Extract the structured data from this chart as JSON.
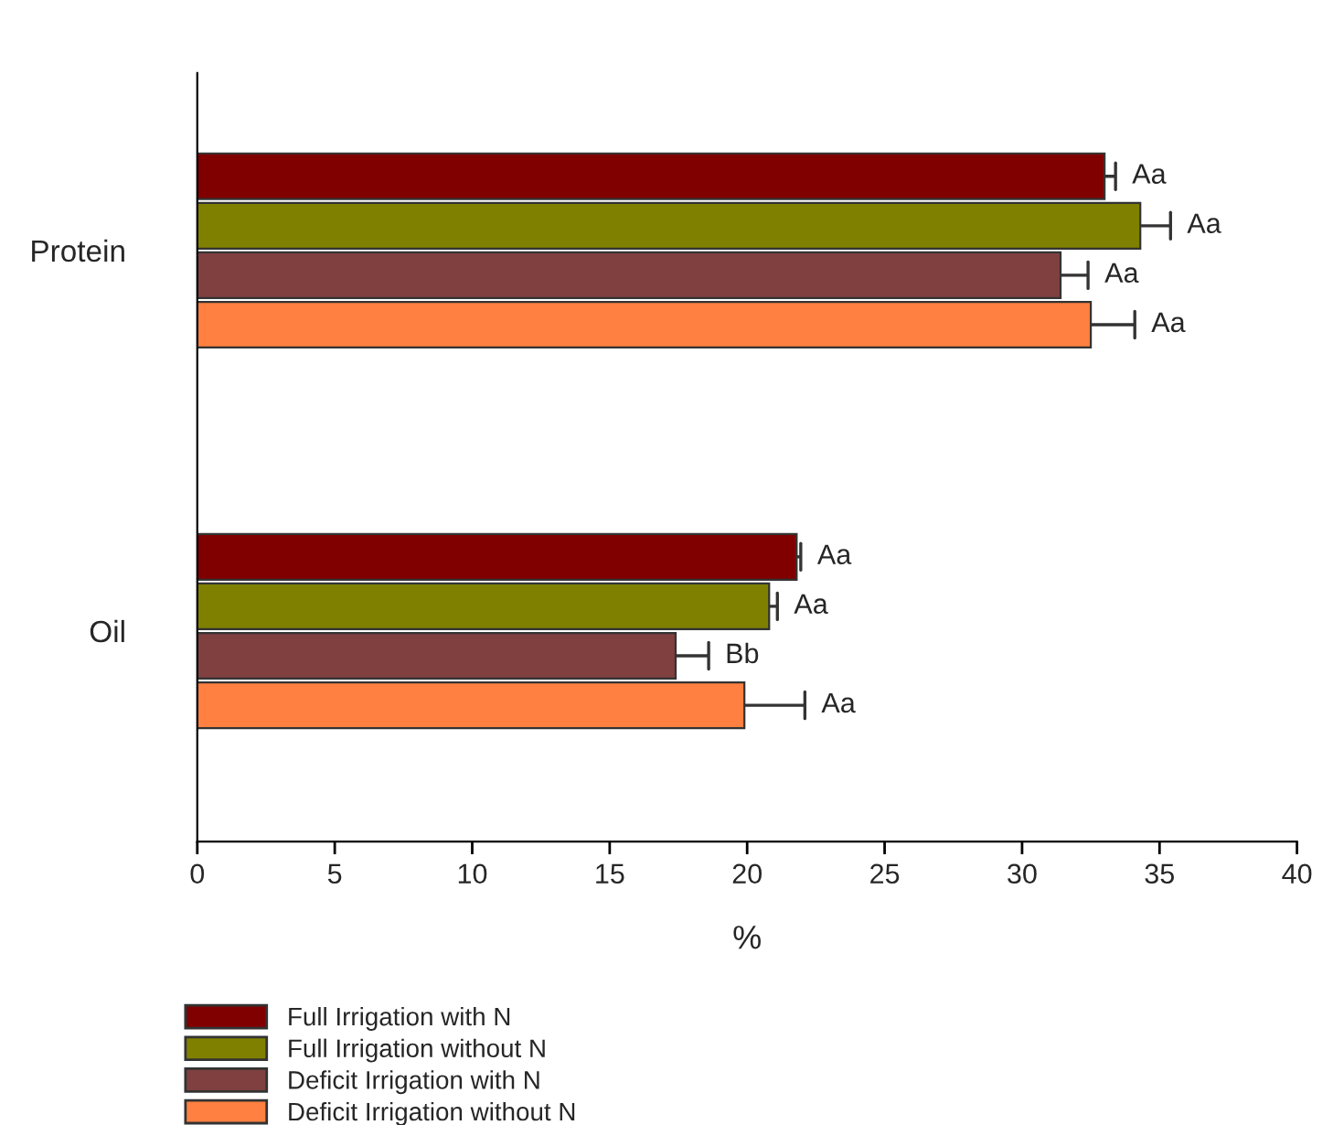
{
  "chart_data": {
    "type": "bar",
    "orientation": "horizontal",
    "categories": [
      "Protein",
      "Oil"
    ],
    "xlabel": "%",
    "xlim": [
      0,
      40
    ],
    "xticks": [
      0,
      5,
      10,
      15,
      20,
      25,
      30,
      35,
      40
    ],
    "grid": false,
    "legend": "bottom",
    "series": [
      {
        "name": "Full Irrigation with N",
        "color": "#800000",
        "values": [
          33.0,
          21.8
        ],
        "errors": [
          [
            33.0,
            33.4
          ],
          [
            21.8,
            21.95
          ]
        ],
        "value_labels": [
          "Aa",
          "Aa"
        ]
      },
      {
        "name": "Full Irrigation without N",
        "color": "#808000",
        "values": [
          34.3,
          20.8
        ],
        "errors": [
          [
            34.3,
            35.4
          ],
          [
            20.8,
            21.1
          ]
        ],
        "value_labels": [
          "Aa",
          "Aa"
        ]
      },
      {
        "name": "Deficit Irrigation with N",
        "color": "#804040",
        "values": [
          31.4,
          17.4
        ],
        "errors": [
          [
            31.4,
            32.4
          ],
          [
            17.4,
            18.6
          ]
        ],
        "value_labels": [
          "Aa",
          "Bb"
        ]
      },
      {
        "name": "Deficit Irrigation without N",
        "color": "#ff8040",
        "values": [
          32.5,
          19.9
        ],
        "errors": [
          [
            32.5,
            34.1
          ],
          [
            19.9,
            22.1
          ]
        ],
        "value_labels": [
          "Aa",
          "Aa"
        ]
      }
    ]
  }
}
